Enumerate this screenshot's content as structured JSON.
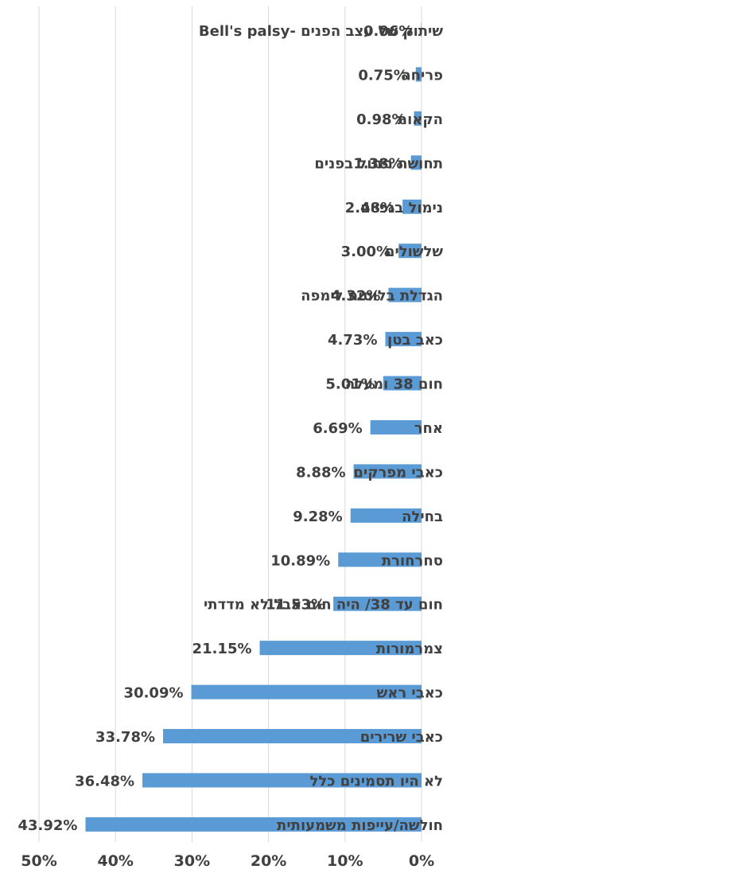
{
  "chart_data": {
    "type": "bar",
    "orientation": "horizontal-reversed",
    "categories": [
      "שיתוק של עצב הפנים -Bell's palsy",
      "פריחה",
      "הקאות",
      "תחושת נימול בפנים",
      "נימול בגפיים",
      "שלשולים",
      "הגדלת בלוטות לימפה",
      "כאב בטן",
      "חום 38 ומעלה",
      "אחר",
      "כאבי מפרקים",
      "בחילה",
      "סחרחורת",
      "חום עד 38/ היה חום אבל לא מדדתי",
      "צמרמורות",
      "כאבי ראש",
      "כאבי שרירים",
      "לא היו תסמינים כלל",
      "חולשה/עייפות משמעותית"
    ],
    "values": [
      0.06,
      0.75,
      0.98,
      1.38,
      2.48,
      3.0,
      4.32,
      4.73,
      5.01,
      6.69,
      8.88,
      9.28,
      10.89,
      11.53,
      21.15,
      30.09,
      33.78,
      36.48,
      43.92
    ],
    "data_labels": [
      "0.06%",
      "0.75%",
      "0.98%",
      "1.38%",
      "2.48%",
      "3.00%",
      "4.32%",
      "4.73%",
      "5.01%",
      "6.69%",
      "8.88%",
      "9.28%",
      "10.89%",
      "11.53%",
      "21.15%",
      "30.09%",
      "33.78%",
      "36.48%",
      "43.92%"
    ],
    "xlim": [
      0,
      50
    ],
    "x_ticks": [
      0,
      10,
      20,
      30,
      40,
      50
    ],
    "x_tick_labels": [
      "0%",
      "10%",
      "20%",
      "30%",
      "40%",
      "50%"
    ],
    "grid": true,
    "bar_color": "#5b9bd5",
    "title": "",
    "xlabel": "",
    "ylabel": ""
  }
}
